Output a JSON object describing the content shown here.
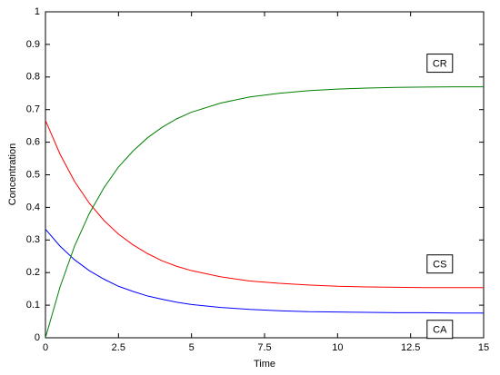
{
  "chart_data": {
    "type": "line",
    "xlabel": "Time",
    "ylabel": "Concentration",
    "x": [
      0,
      0.5,
      1,
      1.5,
      2,
      2.5,
      3,
      3.5,
      4,
      4.5,
      5,
      6,
      7,
      8,
      9,
      10,
      11,
      12,
      13,
      14,
      15
    ],
    "series": [
      {
        "name": "CA",
        "color": "#0000ff",
        "values": [
          0.333,
          0.281,
          0.239,
          0.206,
          0.18,
          0.158,
          0.142,
          0.128,
          0.118,
          0.109,
          0.102,
          0.093,
          0.087,
          0.083,
          0.08,
          0.079,
          0.078,
          0.077,
          0.077,
          0.076,
          0.076
        ]
      },
      {
        "name": "CS",
        "color": "#ff0000",
        "values": [
          0.667,
          0.563,
          0.479,
          0.413,
          0.36,
          0.318,
          0.285,
          0.258,
          0.236,
          0.219,
          0.206,
          0.187,
          0.174,
          0.167,
          0.162,
          0.158,
          0.156,
          0.155,
          0.154,
          0.154,
          0.154
        ]
      },
      {
        "name": "CR",
        "color": "#008000",
        "values": [
          0,
          0.156,
          0.282,
          0.381,
          0.46,
          0.524,
          0.573,
          0.614,
          0.646,
          0.672,
          0.692,
          0.72,
          0.739,
          0.75,
          0.758,
          0.763,
          0.766,
          0.768,
          0.769,
          0.77,
          0.77
        ]
      }
    ],
    "xlim": [
      0,
      15
    ],
    "xticks": [
      0,
      2.5,
      5,
      7.5,
      10,
      12.5,
      15
    ],
    "ylim": [
      0,
      1
    ],
    "yticks": [
      0,
      0.1,
      0.2,
      0.3,
      0.4,
      0.5,
      0.6,
      0.7,
      0.8,
      0.9,
      1
    ],
    "grid": false
  }
}
